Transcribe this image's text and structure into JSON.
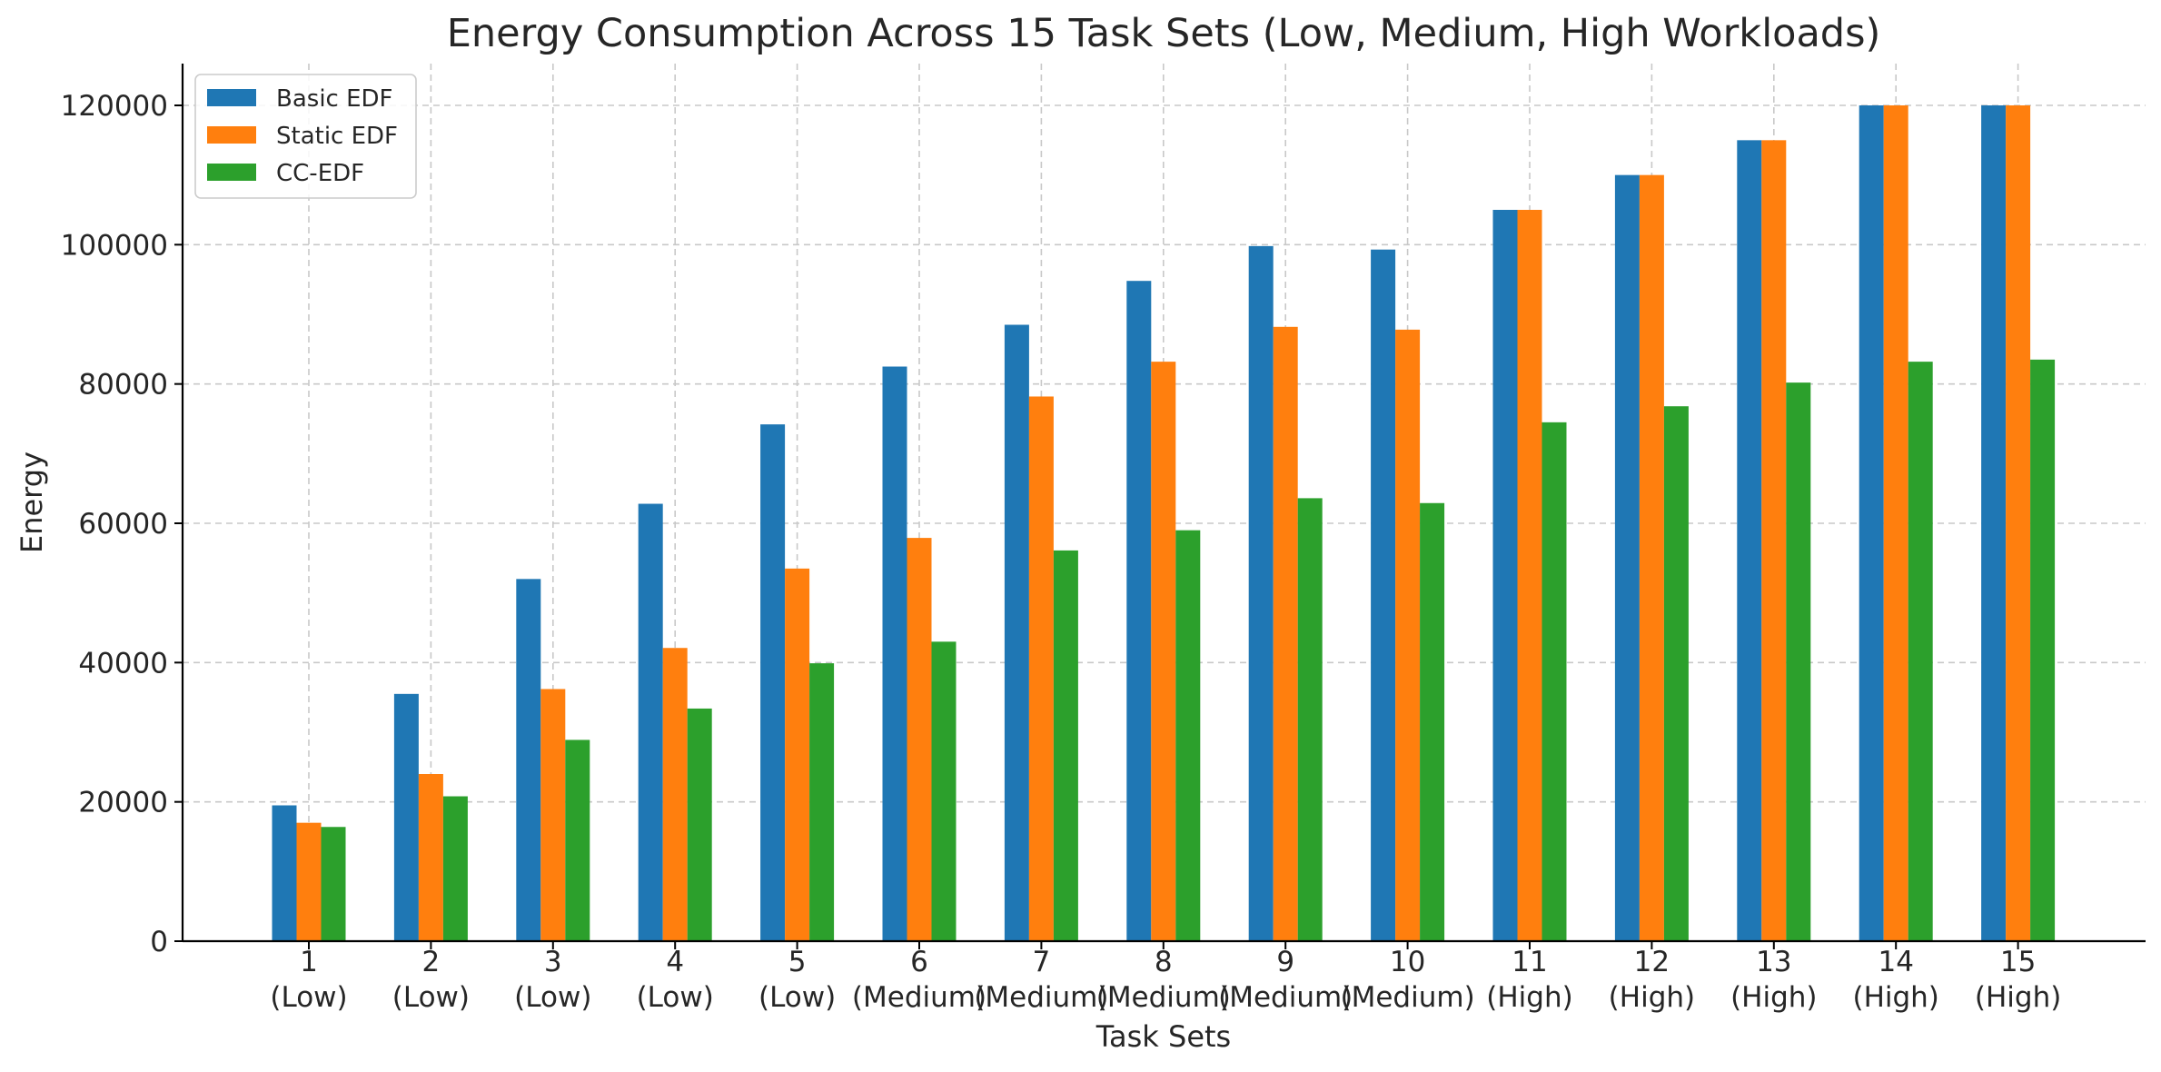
{
  "chart_data": {
    "type": "bar",
    "title": "Energy Consumption Across 15 Task Sets (Low, Medium, High Workloads)",
    "xlabel": "Task Sets",
    "ylabel": "Energy",
    "ylim": [
      0,
      126000
    ],
    "yticks": [
      0,
      20000,
      40000,
      60000,
      80000,
      100000,
      120000
    ],
    "grid": true,
    "legend_position": "top-left",
    "categories": [
      [
        "1",
        "(Low)"
      ],
      [
        "2",
        "(Low)"
      ],
      [
        "3",
        "(Low)"
      ],
      [
        "4",
        "(Low)"
      ],
      [
        "5",
        "(Low)"
      ],
      [
        "6",
        "(Medium)"
      ],
      [
        "7",
        "(Medium)"
      ],
      [
        "8",
        "(Medium)"
      ],
      [
        "9",
        "(Medium)"
      ],
      [
        "10",
        "(Medium)"
      ],
      [
        "11",
        "(High)"
      ],
      [
        "12",
        "(High)"
      ],
      [
        "13",
        "(High)"
      ],
      [
        "14",
        "(High)"
      ],
      [
        "15",
        "(High)"
      ]
    ],
    "series": [
      {
        "name": "Basic EDF",
        "color": "#1f77b4",
        "values": [
          19500,
          35500,
          52000,
          62800,
          74200,
          82500,
          88500,
          94800,
          99800,
          99300,
          105000,
          110000,
          115000,
          120000,
          120000
        ]
      },
      {
        "name": "Static EDF",
        "color": "#ff7f0e",
        "values": [
          17000,
          24000,
          36200,
          42100,
          53500,
          57900,
          78200,
          83200,
          88200,
          87800,
          105000,
          110000,
          115000,
          120000,
          120000
        ]
      },
      {
        "name": "CC-EDF",
        "color": "#2ca02c",
        "values": [
          16400,
          20800,
          28900,
          33400,
          39900,
          43000,
          56100,
          59000,
          63600,
          62900,
          74500,
          76800,
          80200,
          83200,
          83500
        ]
      }
    ]
  }
}
